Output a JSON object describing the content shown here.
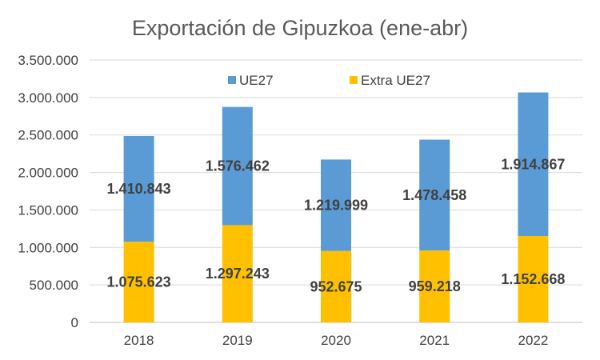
{
  "chart_data": {
    "type": "bar",
    "stacked": true,
    "title": "Exportación de Gipuzkoa (ene-abr)",
    "xlabel": "",
    "ylabel": "",
    "categories": [
      "2018",
      "2019",
      "2020",
      "2021",
      "2022"
    ],
    "series": [
      {
        "name": "Extra UE27",
        "color": "#ffc000",
        "values": [
          1075623,
          1297243,
          952675,
          959218,
          1152668
        ],
        "labels": [
          "1.075.623",
          "1.297.243",
          "952.675",
          "959.218",
          "1.152.668"
        ]
      },
      {
        "name": "UE27",
        "color": "#5b9bd5",
        "values": [
          1410843,
          1576462,
          1219999,
          1478458,
          1914867
        ],
        "labels": [
          "1.410.843",
          "1.576.462",
          "1.219.999",
          "1.478.458",
          "1.914.867"
        ]
      }
    ],
    "ylim": [
      0,
      3500000
    ],
    "yticks": [
      0,
      500000,
      1000000,
      1500000,
      2000000,
      2500000,
      3000000,
      3500000
    ],
    "ytick_labels": [
      "0",
      "500.000",
      "1.000.000",
      "1.500.000",
      "2.000.000",
      "2.500.000",
      "3.000.000",
      "3.500.000"
    ],
    "grid": true,
    "legend": {
      "position": "top",
      "entries": [
        "UE27",
        "Extra UE27"
      ]
    }
  }
}
